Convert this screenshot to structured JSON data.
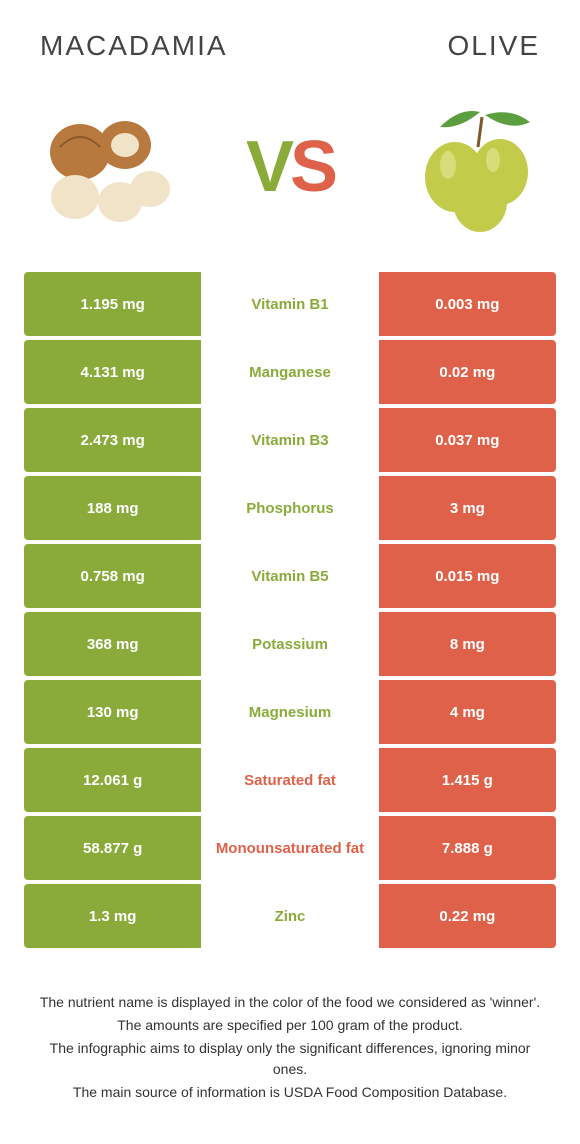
{
  "left_food": {
    "name": "MACADAMIA",
    "color": "#8aab3a"
  },
  "right_food": {
    "name": "OLIVE",
    "color": "#e0614a"
  },
  "vs_text": {
    "v": "V",
    "s": "S"
  },
  "colors": {
    "left_bg": "#8aab3a",
    "right_bg": "#e0614a",
    "mid_bg": "#ffffff",
    "page_bg": "#ffffff",
    "title_color": "#444444",
    "footnote_color": "#333333"
  },
  "table": {
    "label_win_colors": {
      "left": "#8aab3a",
      "right": "#e0614a"
    },
    "rows": [
      {
        "left": "1.195 mg",
        "label": "Vitamin B1",
        "right": "0.003 mg",
        "winner": "left"
      },
      {
        "left": "4.131 mg",
        "label": "Manganese",
        "right": "0.02 mg",
        "winner": "left"
      },
      {
        "left": "2.473 mg",
        "label": "Vitamin B3",
        "right": "0.037 mg",
        "winner": "left"
      },
      {
        "left": "188 mg",
        "label": "Phosphorus",
        "right": "3 mg",
        "winner": "left"
      },
      {
        "left": "0.758 mg",
        "label": "Vitamin B5",
        "right": "0.015 mg",
        "winner": "left"
      },
      {
        "left": "368 mg",
        "label": "Potassium",
        "right": "8 mg",
        "winner": "left"
      },
      {
        "left": "130 mg",
        "label": "Magnesium",
        "right": "4 mg",
        "winner": "left"
      },
      {
        "left": "12.061 g",
        "label": "Saturated fat",
        "right": "1.415 g",
        "winner": "right"
      },
      {
        "left": "58.877 g",
        "label": "Monounsaturated fat",
        "right": "7.888 g",
        "winner": "right"
      },
      {
        "left": "1.3 mg",
        "label": "Zinc",
        "right": "0.22 mg",
        "winner": "left"
      }
    ]
  },
  "footnotes": [
    "The nutrient name is displayed in the color of the food we considered as 'winner'.",
    "The amounts are specified per 100 gram of the product.",
    "The infographic aims to display only the significant differences, ignoring minor ones.",
    "The main source of information is USDA Food Composition Database."
  ]
}
